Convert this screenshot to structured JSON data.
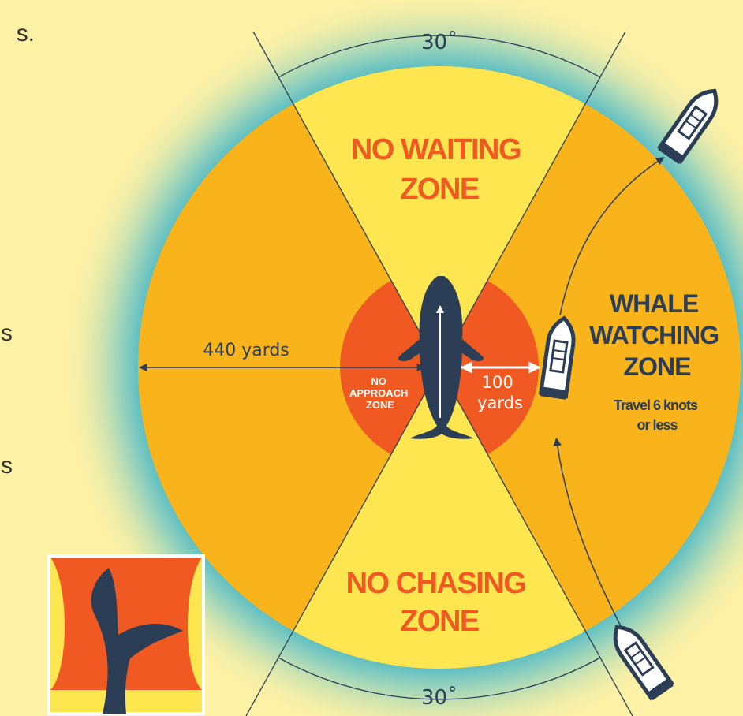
{
  "side_fragments": [
    "s.",
    "s",
    "s"
  ],
  "angle_top": "30˚",
  "angle_bottom": "30˚",
  "no_waiting_zone": [
    "NO WAITING",
    "ZONE"
  ],
  "no_chasing_zone": [
    "NO CHASING",
    "ZONE"
  ],
  "whale_watching_zone": {
    "title": [
      "WHALE",
      "WATCHING",
      "ZONE"
    ],
    "note": [
      "Travel 6 knots",
      "or less"
    ]
  },
  "no_approach_zone": [
    "NO",
    "APPROACH",
    "ZONE"
  ],
  "outer_distance": "440 yards",
  "inner_distance": [
    "100",
    "yards"
  ]
}
